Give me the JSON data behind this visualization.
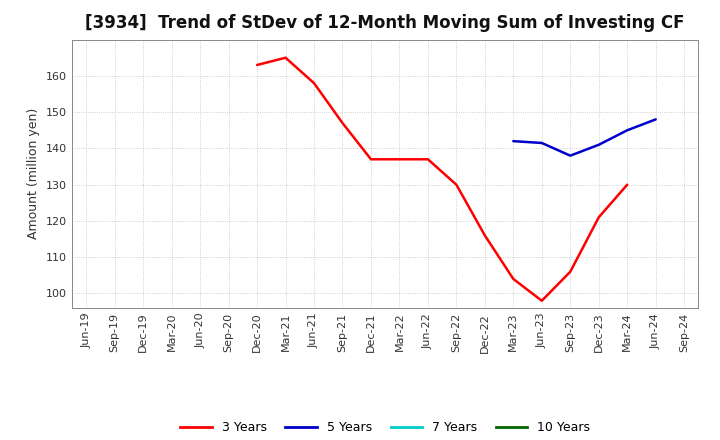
{
  "title": "[3934]  Trend of StDev of 12-Month Moving Sum of Investing CF",
  "ylabel": "Amount (million yen)",
  "ylim": [
    96,
    170
  ],
  "yticks": [
    100,
    110,
    120,
    130,
    140,
    150,
    160
  ],
  "background_color": "#ffffff",
  "grid_color": "#bbbbbb",
  "series": {
    "3 Years": {
      "color": "#ff0000",
      "x": [
        "Dec-20",
        "Mar-21",
        "Jun-21",
        "Sep-21",
        "Dec-21",
        "Mar-22",
        "Jun-22",
        "Sep-22",
        "Dec-22",
        "Mar-23",
        "Jun-23",
        "Sep-23",
        "Dec-23",
        "Mar-24"
      ],
      "y": [
        163,
        165,
        158,
        147,
        137,
        137,
        137,
        130,
        116,
        104,
        98,
        106,
        121,
        130
      ]
    },
    "5 Years": {
      "color": "#0000cc",
      "x": [
        "Mar-23",
        "Jun-23",
        "Sep-23",
        "Dec-23",
        "Mar-24",
        "Jun-24"
      ],
      "y": [
        142,
        141.5,
        138,
        141,
        145,
        148
      ]
    },
    "7 Years": {
      "color": "#00cccc",
      "x": [],
      "y": []
    },
    "10 Years": {
      "color": "#006600",
      "x": [],
      "y": []
    }
  },
  "x_all_labels": [
    "Jun-19",
    "Sep-19",
    "Dec-19",
    "Mar-20",
    "Jun-20",
    "Sep-20",
    "Dec-20",
    "Mar-21",
    "Jun-21",
    "Sep-21",
    "Dec-21",
    "Mar-22",
    "Jun-22",
    "Sep-22",
    "Dec-22",
    "Mar-23",
    "Jun-23",
    "Sep-23",
    "Dec-23",
    "Mar-24",
    "Jun-24",
    "Sep-24"
  ],
  "title_fontsize": 12,
  "axis_label_fontsize": 9,
  "tick_fontsize": 8,
  "legend_fontsize": 9
}
